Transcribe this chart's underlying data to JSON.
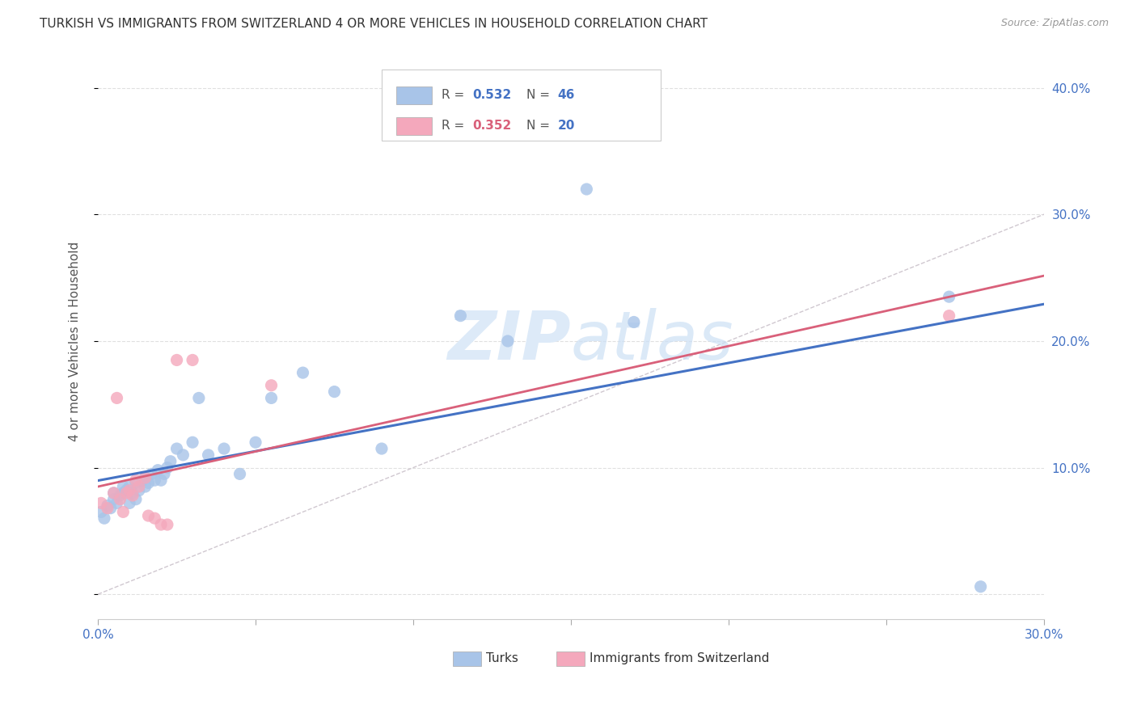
{
  "title": "TURKISH VS IMMIGRANTS FROM SWITZERLAND 4 OR MORE VEHICLES IN HOUSEHOLD CORRELATION CHART",
  "source": "Source: ZipAtlas.com",
  "ylabel": "4 or more Vehicles in Household",
  "xlim": [
    0.0,
    0.3
  ],
  "ylim": [
    -0.02,
    0.42
  ],
  "xticks": [
    0.0,
    0.05,
    0.1,
    0.15,
    0.2,
    0.25,
    0.3
  ],
  "yticks": [
    0.0,
    0.1,
    0.2,
    0.3,
    0.4
  ],
  "ytick_labels": [
    "",
    "10.0%",
    "20.0%",
    "30.0%",
    "40.0%"
  ],
  "background_color": "#ffffff",
  "grid_color": "#e0e0e0",
  "turks_color": "#a8c4e8",
  "swiss_color": "#f4a8bc",
  "turks_line_color": "#4472c4",
  "swiss_line_color": "#d9607a",
  "diagonal_color": "#d0c8d0",
  "legend_turks_R": "0.532",
  "legend_turks_N": "46",
  "legend_swiss_R": "0.352",
  "legend_swiss_N": "20",
  "turks_x": [
    0.001,
    0.002,
    0.003,
    0.004,
    0.005,
    0.005,
    0.006,
    0.007,
    0.008,
    0.008,
    0.009,
    0.01,
    0.01,
    0.011,
    0.012,
    0.012,
    0.013,
    0.014,
    0.015,
    0.015,
    0.016,
    0.017,
    0.018,
    0.019,
    0.02,
    0.021,
    0.022,
    0.023,
    0.025,
    0.027,
    0.03,
    0.032,
    0.035,
    0.04,
    0.045,
    0.05,
    0.055,
    0.065,
    0.075,
    0.09,
    0.115,
    0.13,
    0.155,
    0.17,
    0.27,
    0.28
  ],
  "turks_y": [
    0.065,
    0.06,
    0.07,
    0.068,
    0.075,
    0.08,
    0.072,
    0.078,
    0.08,
    0.085,
    0.082,
    0.085,
    0.072,
    0.08,
    0.088,
    0.075,
    0.082,
    0.09,
    0.085,
    0.092,
    0.088,
    0.095,
    0.09,
    0.098,
    0.09,
    0.095,
    0.1,
    0.105,
    0.115,
    0.11,
    0.12,
    0.155,
    0.11,
    0.115,
    0.095,
    0.12,
    0.155,
    0.175,
    0.16,
    0.115,
    0.22,
    0.2,
    0.32,
    0.215,
    0.235,
    0.006
  ],
  "swiss_x": [
    0.001,
    0.003,
    0.005,
    0.006,
    0.007,
    0.008,
    0.009,
    0.01,
    0.011,
    0.012,
    0.013,
    0.015,
    0.016,
    0.018,
    0.02,
    0.022,
    0.025,
    0.03,
    0.055,
    0.27
  ],
  "swiss_y": [
    0.072,
    0.068,
    0.08,
    0.155,
    0.075,
    0.065,
    0.08,
    0.082,
    0.078,
    0.09,
    0.085,
    0.092,
    0.062,
    0.06,
    0.055,
    0.055,
    0.185,
    0.185,
    0.165,
    0.22
  ]
}
